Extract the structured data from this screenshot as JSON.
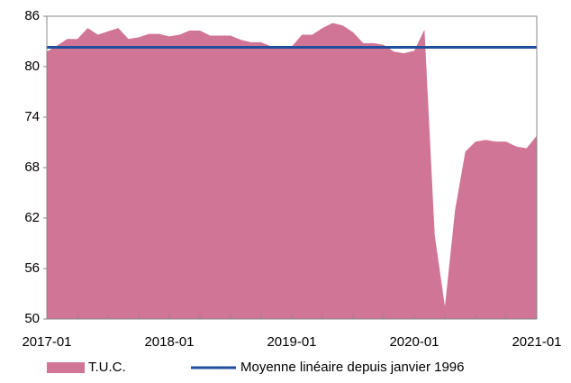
{
  "chart_data": {
    "type": "area",
    "categories": [
      "2017-01",
      null,
      null,
      null,
      null,
      null,
      null,
      null,
      null,
      null,
      null,
      null,
      "2018-01",
      null,
      null,
      null,
      null,
      null,
      null,
      null,
      null,
      null,
      null,
      null,
      "2019-01",
      null,
      null,
      null,
      null,
      null,
      null,
      null,
      null,
      null,
      null,
      null,
      "2020-01",
      null,
      null,
      null,
      null,
      null,
      null,
      null,
      null,
      null,
      null,
      null,
      "2021-01"
    ],
    "series": [
      {
        "name": "T.U.C.",
        "color": "#d07595",
        "values": [
          81.8,
          82.5,
          83.3,
          83.3,
          84.6,
          83.8,
          84.2,
          84.6,
          83.3,
          83.5,
          83.9,
          83.9,
          83.6,
          83.8,
          84.3,
          84.3,
          83.7,
          83.7,
          83.7,
          83.2,
          82.9,
          82.9,
          82.4,
          82.4,
          82.4,
          83.8,
          83.8,
          84.6,
          85.2,
          84.9,
          84.1,
          82.8,
          82.8,
          82.6,
          81.8,
          81.6,
          81.9,
          84.4,
          60.0,
          51.5,
          63.0,
          69.9,
          71.1,
          71.3,
          71.1,
          71.1,
          70.5,
          70.3,
          71.8
        ]
      }
    ],
    "reference_line": {
      "name": "Moyenne linéaire depuis janvier 1996",
      "color": "#1f4e9c",
      "value": 82.3
    },
    "ylim": [
      50,
      86
    ],
    "yticks": [
      50,
      56,
      62,
      68,
      74,
      80,
      86
    ]
  }
}
